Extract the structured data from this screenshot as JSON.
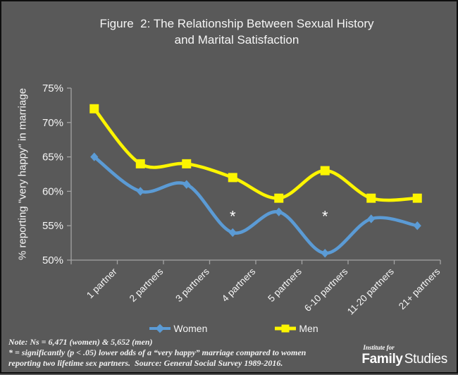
{
  "figure": {
    "title_line1": "Figure  2: The Relationship Between Sexual History",
    "title_line2": "and Marital Satisfaction",
    "background_color": "#595959",
    "border_color": "#0e0e0e",
    "text_color": "#ffffff",
    "axis_color": "#a3a3a3"
  },
  "chart_data": {
    "type": "line",
    "title": "Figure 2: The Relationship Between Sexual History and Marital Satisfaction",
    "categories": [
      "1 partner",
      "2 partners",
      "3 partners",
      "4 partners",
      "5 partners",
      "6-10 partners",
      "11-20 partners",
      "21+ partners"
    ],
    "series": [
      {
        "name": "Women",
        "color": "#5b9bd5",
        "marker": "diamond",
        "values": [
          65,
          60,
          61,
          54,
          57,
          51,
          56,
          55
        ]
      },
      {
        "name": "Men",
        "color": "#fcf500",
        "marker": "square",
        "values": [
          72,
          64,
          64,
          62,
          59,
          63,
          59,
          59
        ]
      }
    ],
    "xlabel": "",
    "ylabel": "% reporting \"very happy\" in marriage",
    "ylim": [
      50,
      75
    ],
    "y_ticks": [
      {
        "label": "50%",
        "value": 50
      },
      {
        "label": "55%",
        "value": 55
      },
      {
        "label": "60%",
        "value": 60
      },
      {
        "label": "65%",
        "value": 65
      },
      {
        "label": "70%",
        "value": 70
      },
      {
        "label": "75%",
        "value": 75
      }
    ],
    "grid": false,
    "legend_position": "bottom",
    "line_smoothing": true,
    "annotations": [
      {
        "text": "*",
        "category_index": 3,
        "value": 56.5
      },
      {
        "text": "*",
        "category_index": 5,
        "value": 56.5
      }
    ]
  },
  "footnote": {
    "lines": [
      "Note: Ns = 6,471 (women) & 5,652 (men)",
      "* = significantly (p < .05) lower odds of a “very happy” marriage compared to women",
      "reporting two lifetime sex partners.  Source: General Social Survey 1989-2016."
    ]
  },
  "logo": {
    "institute_for": "Institute for",
    "family": "Family",
    "studies": "Studies"
  }
}
